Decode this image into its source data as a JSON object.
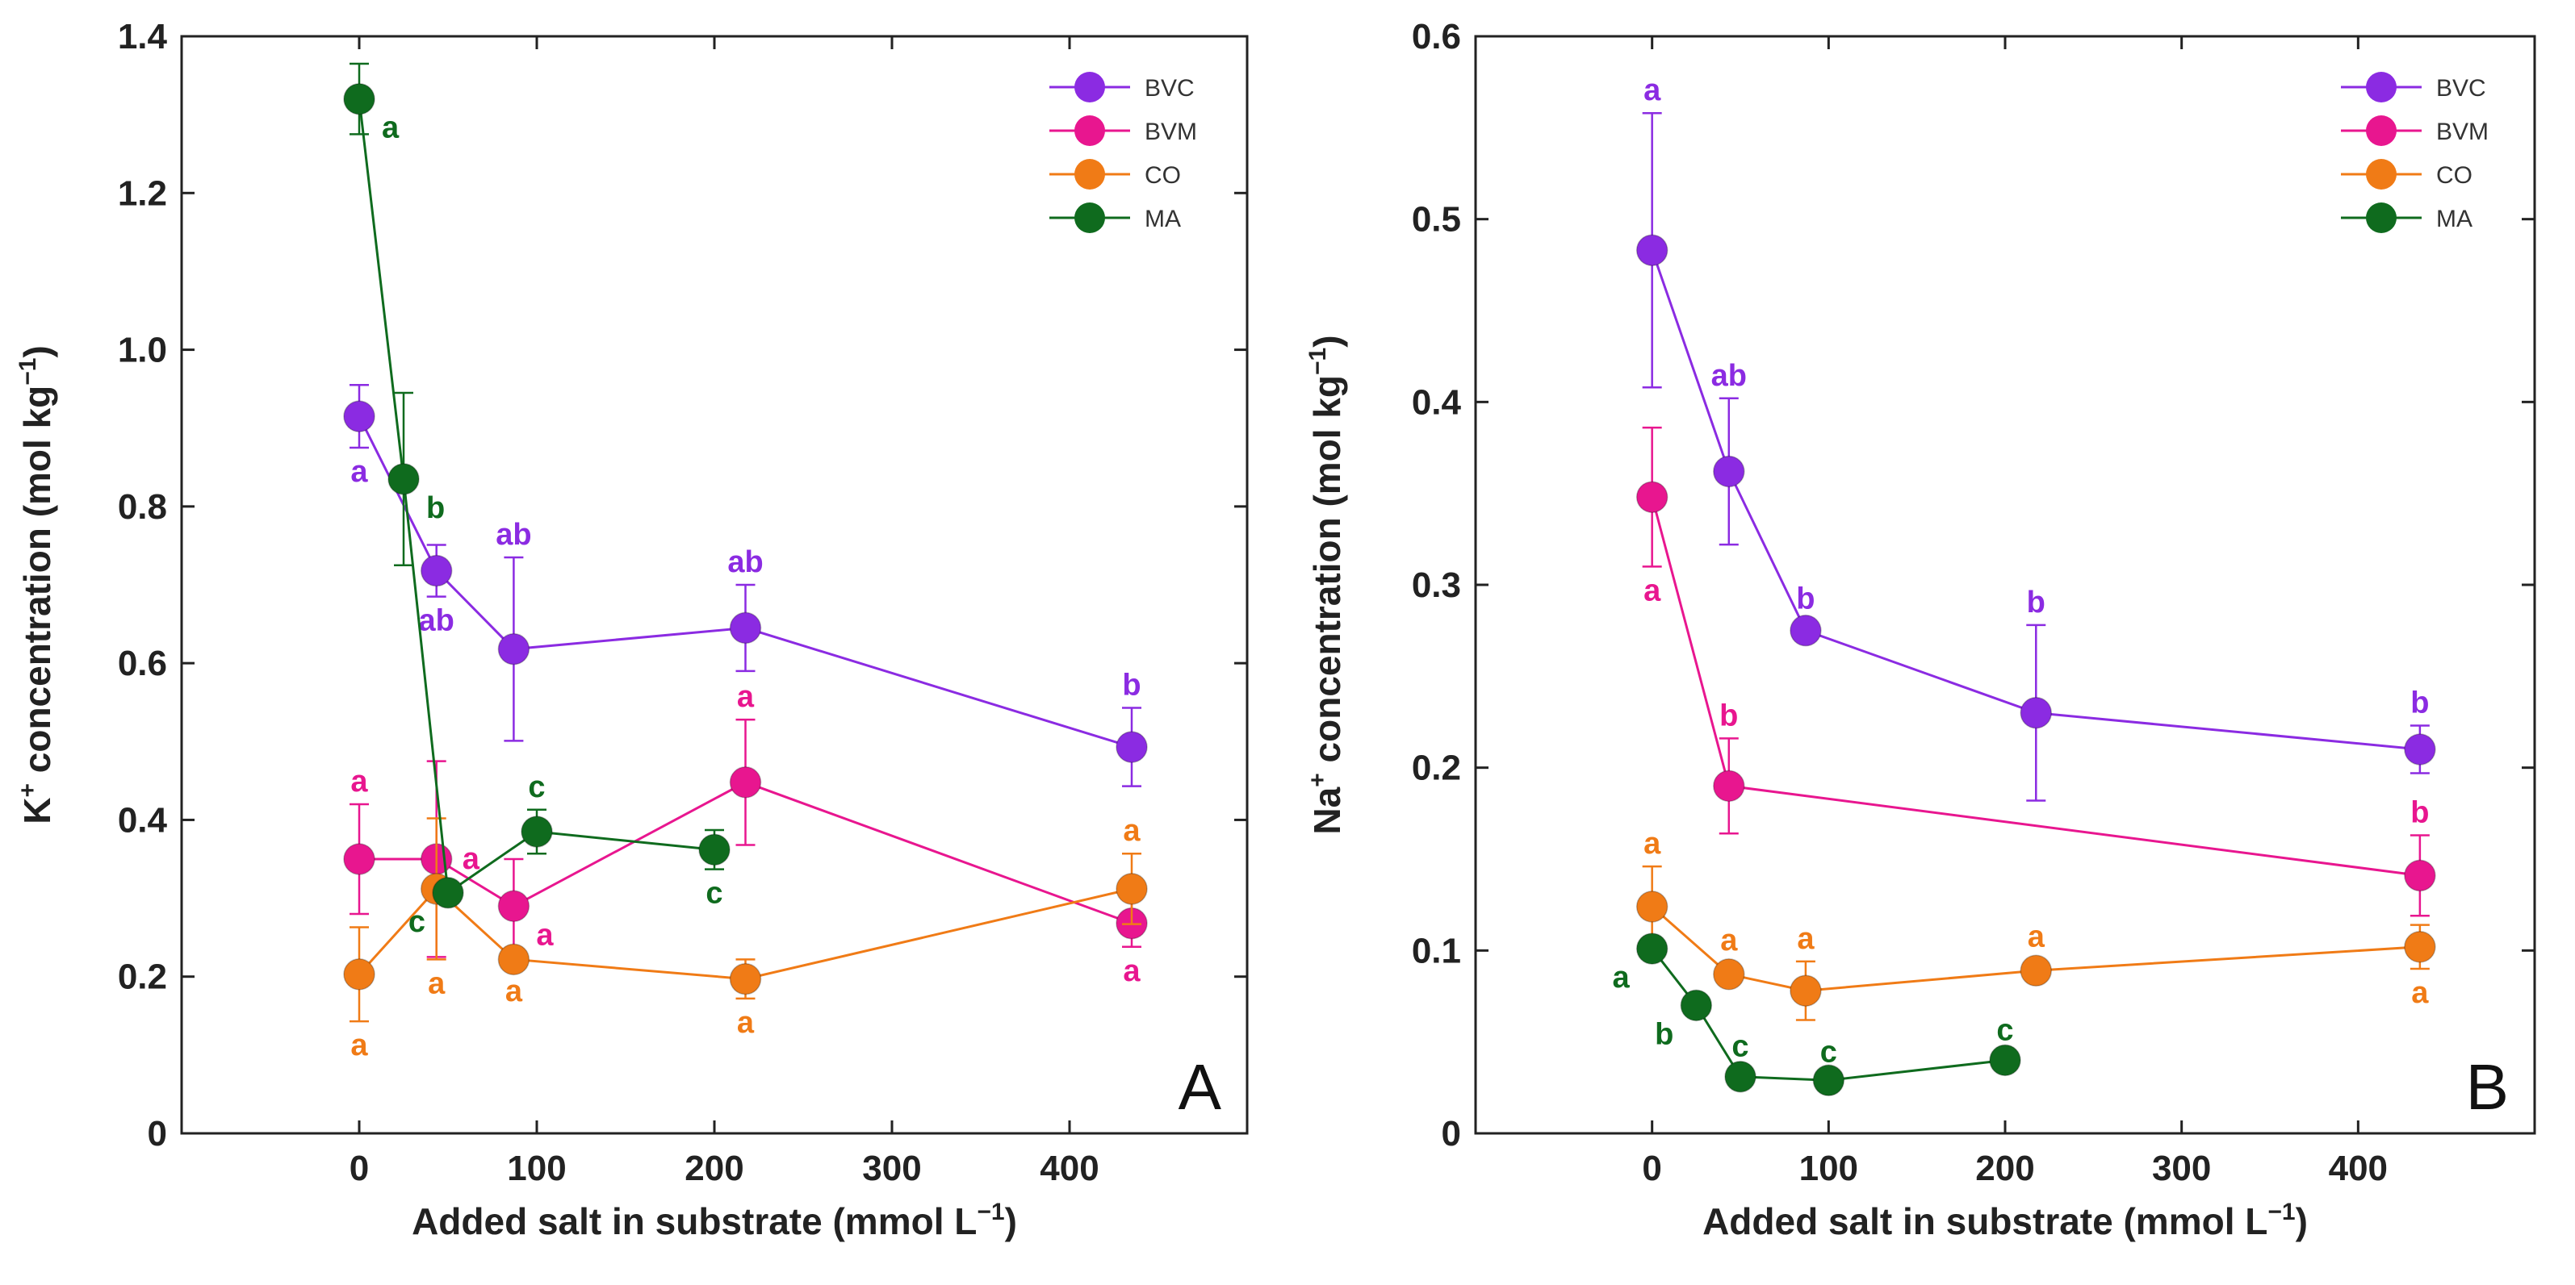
{
  "series_colors": {
    "BVC": "#8b2be2",
    "BVM": "#e8168f",
    "CO": "#f07b16",
    "MA": "#0f6b1e"
  },
  "chart_data": [
    {
      "type": "line",
      "panel": "A",
      "ylabel_main": "K",
      "ylabel_sup": "+",
      "ylabel_rest": " concentration (mol kg",
      "ylabel_unit_sup": "−1",
      "ylabel_close": ")",
      "xlabel_main": "Added salt in substrate (mmol L",
      "xlabel_sup": "−1",
      "xlabel_close": ")",
      "xlim": [
        -100,
        500
      ],
      "ylim": [
        0,
        1.4
      ],
      "xticks": [
        0,
        100,
        200,
        300,
        400
      ],
      "xtick_labels": [
        "0",
        "100",
        "200",
        "300",
        "400"
      ],
      "yticks": [
        0,
        0.2,
        0.4,
        0.6,
        0.8,
        1.0,
        1.2,
        1.4
      ],
      "ytick_labels": [
        "0",
        "0.2",
        "0.4",
        "0.6",
        "0.8",
        "1.0",
        "1.2",
        "1.4"
      ],
      "legend": [
        "BVC",
        "BVM",
        "CO",
        "MA"
      ],
      "legend_position": "top-right",
      "series": [
        {
          "name": "BVC",
          "x": [
            0,
            43.5,
            87,
            217.5,
            435
          ],
          "y": [
            0.915,
            0.718,
            0.618,
            0.645,
            0.493
          ],
          "err": [
            0.04,
            0.033,
            0.117,
            0.055,
            0.05
          ],
          "letters": [
            "a",
            "ab",
            "ab",
            "ab",
            "b"
          ],
          "letter_pos": [
            "below",
            "below",
            "above",
            "above",
            "above"
          ]
        },
        {
          "name": "BVM",
          "x": [
            0,
            43.5,
            87,
            217.5,
            435
          ],
          "y": [
            0.35,
            0.35,
            0.29,
            0.448,
            0.268
          ],
          "err": [
            0.07,
            0.125,
            0.06,
            0.08,
            0.03
          ],
          "letters": [
            "a",
            "a",
            "a",
            "a",
            "a"
          ],
          "letter_pos": [
            "above",
            "right",
            "below-right",
            "above",
            "below"
          ]
        },
        {
          "name": "CO",
          "x": [
            0,
            43.5,
            87,
            217.5,
            435
          ],
          "y": [
            0.203,
            0.312,
            0.222,
            0.197,
            0.312
          ],
          "err": [
            0.06,
            0.09,
            0.01,
            0.025,
            0.045
          ],
          "letters": [
            "a",
            "a",
            "a",
            "a",
            "a"
          ],
          "letter_pos": [
            "below",
            "below",
            "below",
            "below",
            "above"
          ]
        },
        {
          "name": "MA",
          "x": [
            0,
            25,
            50,
            100,
            200
          ],
          "y": [
            1.32,
            0.835,
            0.307,
            0.385,
            0.362
          ],
          "err": [
            0.045,
            0.11,
            0.01,
            0.028,
            0.025
          ],
          "letters": [
            "a",
            "b",
            "c",
            "c",
            "c"
          ],
          "letter_pos": [
            "below-right",
            "below-right",
            "below-left",
            "above",
            "below"
          ]
        }
      ]
    },
    {
      "type": "line",
      "panel": "B",
      "ylabel_main": "Na",
      "ylabel_sup": "+",
      "ylabel_rest": " concentration (mol kg",
      "ylabel_unit_sup": "−1",
      "ylabel_close": ")",
      "xlabel_main": "Added salt in substrate (mmol L",
      "xlabel_sup": "−1",
      "xlabel_close": ")",
      "xlim": [
        -100,
        500
      ],
      "ylim": [
        0,
        0.6
      ],
      "xticks": [
        0,
        100,
        200,
        300,
        400
      ],
      "xtick_labels": [
        "0",
        "100",
        "200",
        "300",
        "400"
      ],
      "yticks": [
        0,
        0.1,
        0.2,
        0.3,
        0.4,
        0.5,
        0.6
      ],
      "ytick_labels": [
        "0",
        "0.1",
        "0.2",
        "0.3",
        "0.4",
        "0.5",
        "0.6"
      ],
      "legend": [
        "BVC",
        "BVM",
        "CO",
        "MA"
      ],
      "legend_position": "top-right",
      "series": [
        {
          "name": "BVC",
          "x": [
            0,
            43.5,
            87,
            217.5,
            435
          ],
          "y": [
            0.483,
            0.362,
            0.275,
            0.23,
            0.21
          ],
          "err": [
            0.075,
            0.04,
            0.005,
            0.048,
            0.013
          ],
          "letters": [
            "a",
            "ab",
            "b",
            "b",
            "b"
          ],
          "letter_pos": [
            "above",
            "above",
            "above",
            "above",
            "above"
          ]
        },
        {
          "name": "BVM",
          "x": [
            0,
            43.5,
            435
          ],
          "y": [
            0.348,
            0.19,
            0.141
          ],
          "err": [
            0.038,
            0.026,
            0.022
          ],
          "letters": [
            "a",
            "b",
            "b"
          ],
          "letter_pos": [
            "below",
            "above",
            "above"
          ]
        },
        {
          "name": "CO",
          "x": [
            0,
            43.5,
            87,
            217.5,
            435
          ],
          "y": [
            0.124,
            0.087,
            0.078,
            0.089,
            0.102
          ],
          "err": [
            0.022,
            0.006,
            0.016,
            0.006,
            0.012
          ],
          "letters": [
            "a",
            "a",
            "a",
            "a",
            "a"
          ],
          "letter_pos": [
            "above",
            "above",
            "above",
            "above",
            "below"
          ]
        },
        {
          "name": "MA",
          "x": [
            0,
            25,
            50,
            100,
            200
          ],
          "y": [
            0.101,
            0.07,
            0.031,
            0.029,
            0.04
          ],
          "err": [
            0.005,
            0.005,
            0.004,
            0.003,
            0.004
          ],
          "letters": [
            "a",
            "b",
            "c",
            "c",
            "c"
          ],
          "letter_pos": [
            "below-left",
            "below-left",
            "above",
            "above",
            "above"
          ]
        }
      ]
    }
  ]
}
